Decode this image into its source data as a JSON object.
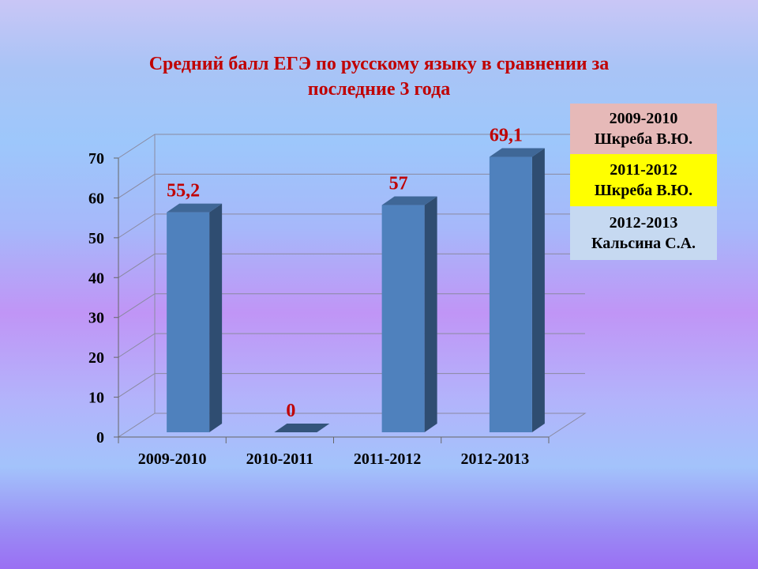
{
  "chart_data": {
    "type": "bar",
    "title": "Средний балл ЕГЭ по русскому языку в сравнении за последние 3 года",
    "title_lines": [
      "Средний балл ЕГЭ по русскому языку в сравнении за",
      "последние 3 года"
    ],
    "categories": [
      "2009-2010",
      "2010-2011",
      "2011-2012",
      "2012-2013"
    ],
    "values": [
      55.2,
      0,
      57,
      69.1
    ],
    "value_labels": [
      "55,2",
      "0",
      "57",
      "69,1"
    ],
    "yticks": [
      0,
      10,
      20,
      30,
      40,
      50,
      60,
      70
    ],
    "ylim": [
      0,
      70
    ],
    "xlabel": "",
    "ylabel": "",
    "grid": true,
    "three_d": true,
    "bar_color": "#4f81bd",
    "label_color": "#c00000"
  },
  "legend": [
    {
      "line1": "2009-2010",
      "line2": "Шкреба В.Ю.",
      "bg": "#e6b9b8"
    },
    {
      "line1": "2011-2012",
      "line2": "Шкреба В.Ю.",
      "bg": "#ffff00"
    },
    {
      "line1": "2012-2013",
      "line2": "Кальсина С.А.",
      "bg": "#c6d9f1"
    }
  ]
}
